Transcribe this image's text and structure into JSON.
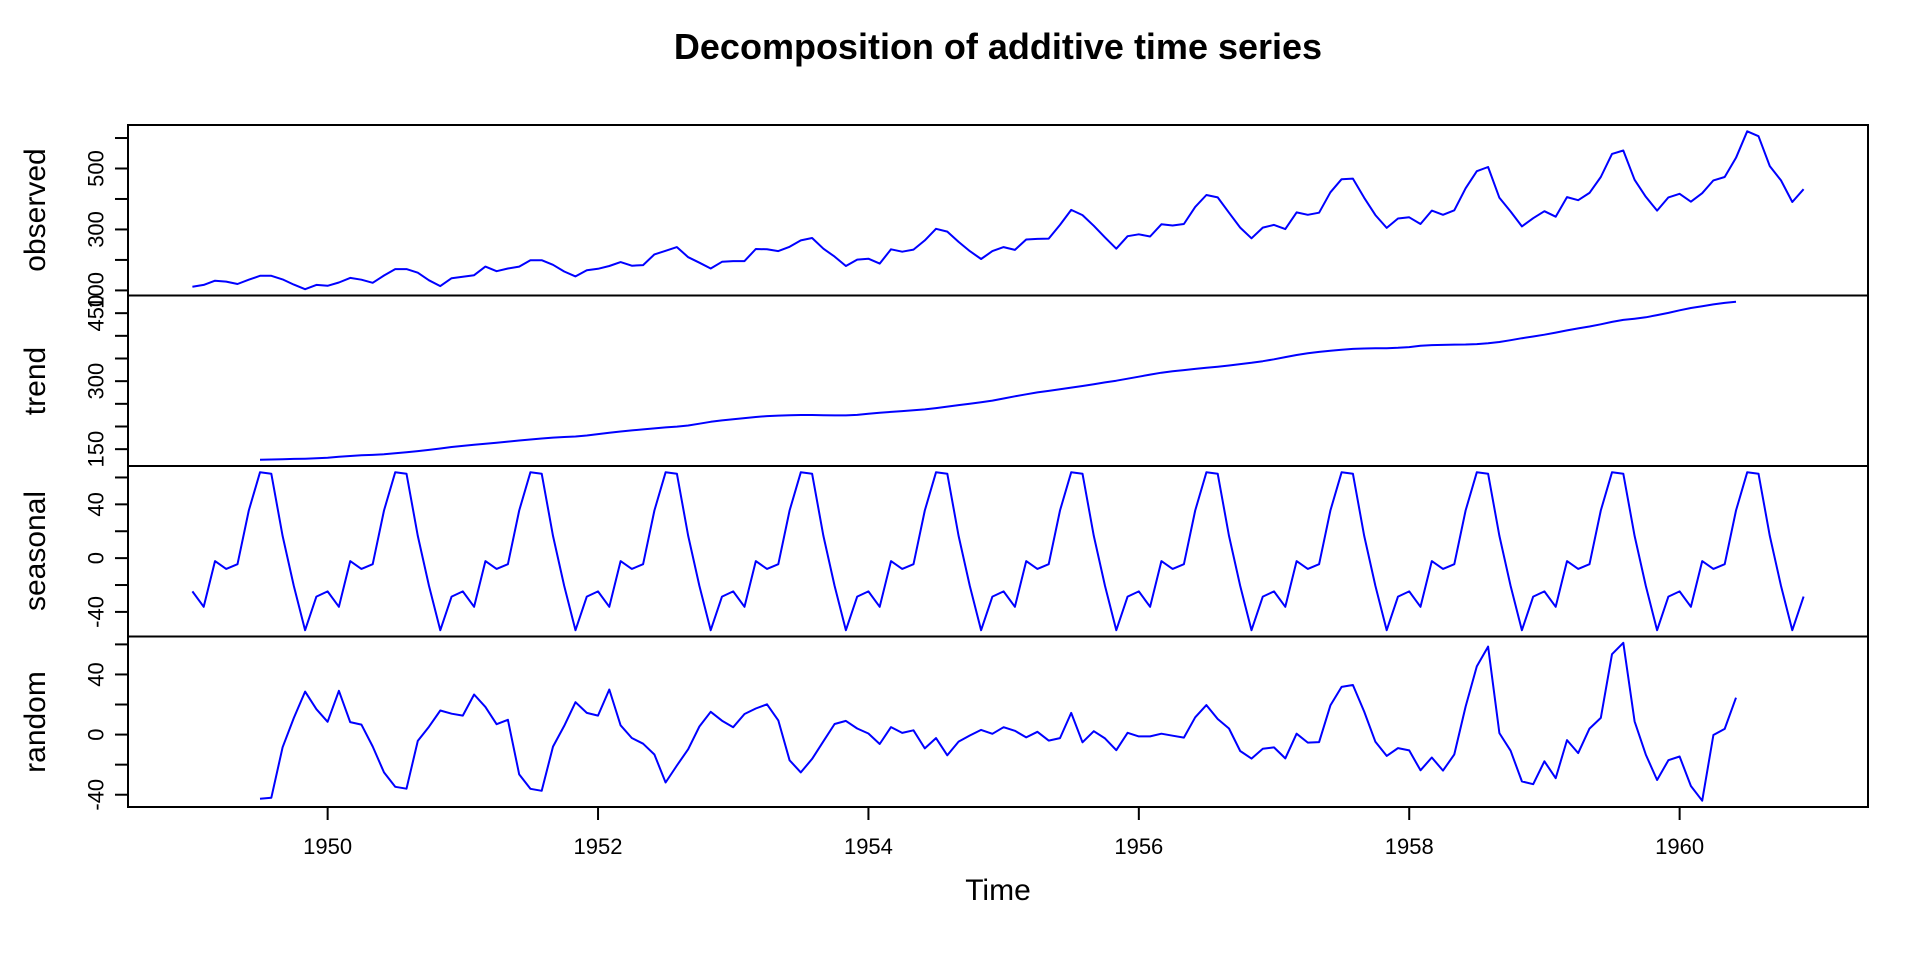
{
  "chart_data": {
    "type": "line",
    "title": "Decomposition of additive time series",
    "xlabel": "Time",
    "line_color": "#0000ff",
    "axis_color": "#000000",
    "x_start_year": 1949,
    "frequency": 12,
    "x_ticks": [
      1950,
      1952,
      1954,
      1956,
      1958,
      1960
    ],
    "x_range_note": "monthly data Jan 1949 - Dec 1960, 4% axis padding each side",
    "observed": [
      112,
      118,
      132,
      129,
      121,
      135,
      148,
      148,
      136,
      119,
      104,
      118,
      115,
      126,
      141,
      135,
      125,
      149,
      170,
      170,
      158,
      133,
      114,
      140,
      145,
      150,
      178,
      163,
      172,
      178,
      199,
      199,
      184,
      162,
      146,
      166,
      171,
      180,
      193,
      181,
      183,
      218,
      230,
      242,
      209,
      191,
      172,
      194,
      196,
      196,
      236,
      235,
      229,
      243,
      264,
      272,
      237,
      211,
      180,
      201,
      204,
      188,
      235,
      227,
      234,
      264,
      302,
      293,
      259,
      229,
      203,
      229,
      242,
      233,
      267,
      269,
      270,
      315,
      364,
      347,
      312,
      274,
      237,
      278,
      284,
      277,
      317,
      313,
      318,
      374,
      413,
      405,
      355,
      306,
      271,
      306,
      315,
      301,
      356,
      348,
      355,
      422,
      465,
      467,
      404,
      347,
      305,
      336,
      340,
      318,
      362,
      348,
      363,
      435,
      491,
      505,
      404,
      359,
      310,
      337,
      360,
      342,
      406,
      396,
      420,
      472,
      548,
      559,
      463,
      407,
      362,
      405,
      417,
      391,
      419,
      461,
      472,
      535,
      622,
      606,
      508,
      461,
      390,
      432
    ],
    "seasonal_figure": [
      -24.7487,
      -36.1881,
      -2.2412,
      -8.0366,
      -4.5063,
      35.4028,
      63.8308,
      62.8232,
      16.5202,
      -20.6427,
      -53.5934,
      -28.6199
    ],
    "trend_method": "12-month centered moving average (undefined for first and last 6 months)",
    "random_method": "observed - trend - seasonal",
    "panels": [
      {
        "label": "observed",
        "ticks": [
          100,
          200,
          300,
          400,
          500,
          600
        ],
        "labeled_ticks": [
          100,
          300,
          500
        ]
      },
      {
        "label": "trend",
        "ticks": [
          150,
          200,
          250,
          300,
          350,
          400,
          450
        ],
        "labeled_ticks": [
          150,
          300,
          450
        ]
      },
      {
        "label": "seasonal",
        "ticks": [
          -40,
          -20,
          0,
          20,
          40,
          60
        ],
        "labeled_ticks": [
          -40,
          0,
          40
        ]
      },
      {
        "label": "random",
        "ticks": [
          -40,
          -20,
          0,
          20,
          40,
          60
        ],
        "labeled_ticks": [
          -40,
          0,
          40
        ]
      }
    ]
  }
}
